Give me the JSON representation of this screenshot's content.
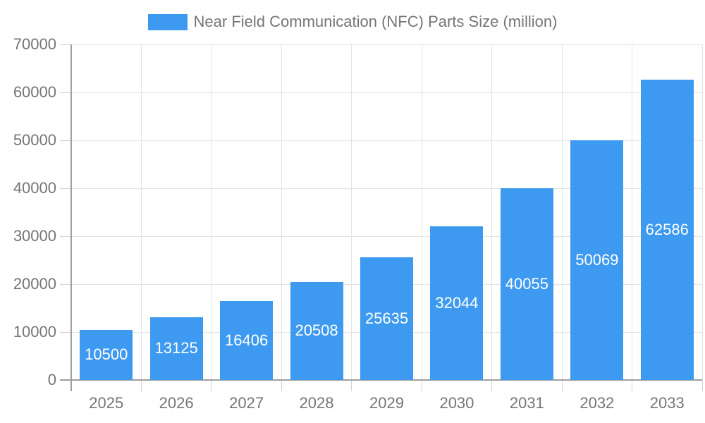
{
  "legend": {
    "label": "Near Field Communication (NFC) Parts Size (million)"
  },
  "chart_data": {
    "type": "bar",
    "title": "Near Field Communication (NFC) Parts Size (million)",
    "series_name": "Near Field Communication (NFC) Parts Size (million)",
    "categories": [
      "2025",
      "2026",
      "2027",
      "2028",
      "2029",
      "2030",
      "2031",
      "2032",
      "2033"
    ],
    "values": [
      10500,
      13125,
      16406,
      20508,
      25635,
      32044,
      40055,
      50069,
      62586
    ],
    "bar_labels": [
      "10500",
      "13125",
      "16406",
      "20508",
      "25635",
      "32044",
      "40055",
      "50069",
      "62586"
    ],
    "xlabel": "",
    "ylabel": "",
    "ylim": [
      0,
      70000
    ],
    "ytick_interval": 10000,
    "yticks": [
      0,
      10000,
      20000,
      30000,
      40000,
      50000,
      60000,
      70000
    ],
    "ytick_labels": [
      "0",
      "10000",
      "20000",
      "30000",
      "40000",
      "50000",
      "60000",
      "70000"
    ],
    "grid": true,
    "legend_position": "top",
    "colors": {
      "bar": "#3D9AF0",
      "bar_value_text": "#FFFFFF",
      "axis_label": "#757575",
      "gridline": "#E3E3E3",
      "tick": "#D2D2D2",
      "axis_line": "#9E9E9E",
      "background": "#FFFFFF"
    }
  }
}
